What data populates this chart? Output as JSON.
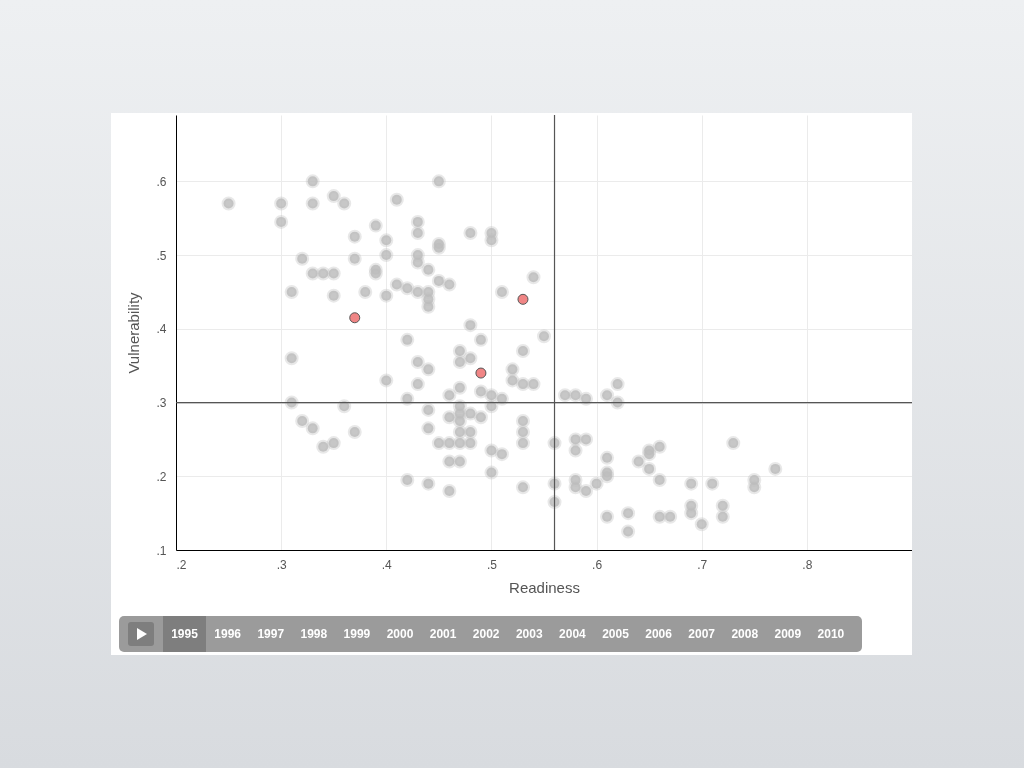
{
  "chart_data": {
    "type": "scatter",
    "xlabel": "Readiness",
    "ylabel": "Vulnerability",
    "xlim": [
      0.2,
      0.9
    ],
    "ylim": [
      0.1,
      0.69
    ],
    "xticks": [
      {
        "value": 0.2,
        "label": ".2"
      },
      {
        "value": 0.3,
        "label": ".3"
      },
      {
        "value": 0.4,
        "label": ".4"
      },
      {
        "value": 0.5,
        "label": ".5"
      },
      {
        "value": 0.6,
        "label": ".6"
      },
      {
        "value": 0.7,
        "label": ".7"
      },
      {
        "value": 0.8,
        "label": ".8"
      }
    ],
    "yticks": [
      {
        "value": 0.1,
        "label": ".1"
      },
      {
        "value": 0.2,
        "label": ".2"
      },
      {
        "value": 0.3,
        "label": ".3"
      },
      {
        "value": 0.4,
        "label": ".4"
      },
      {
        "value": 0.5,
        "label": ".5"
      },
      {
        "value": 0.6,
        "label": ".6"
      }
    ],
    "grid": true,
    "marker": "circle",
    "ref_lines": [
      {
        "axis": "x",
        "value": 0.56,
        "color": "#555555"
      },
      {
        "axis": "y",
        "value": 0.3,
        "color": "#555555"
      }
    ],
    "annotations": [
      "1995",
      "1996",
      "1997",
      "1998",
      "1999",
      "2000",
      "2001",
      "2002",
      "2003",
      "2004",
      "2005",
      "2006",
      "2007",
      "2008",
      "2009",
      "2010"
    ],
    "series": [
      {
        "color": "#bdbdbd",
        "x": [
          0.25,
          0.3,
          0.3,
          0.33,
          0.33,
          0.35,
          0.36,
          0.37,
          0.39,
          0.4,
          0.4,
          0.41,
          0.43,
          0.43,
          0.43,
          0.43,
          0.45,
          0.45,
          0.45,
          0.48,
          0.5,
          0.5,
          0.32,
          0.33,
          0.34,
          0.35,
          0.37,
          0.39,
          0.39,
          0.41,
          0.42,
          0.43,
          0.44,
          0.44,
          0.45,
          0.46,
          0.44,
          0.44,
          0.51,
          0.54,
          0.31,
          0.35,
          0.38,
          0.4,
          0.48,
          0.49,
          0.42,
          0.55,
          0.53,
          0.43,
          0.44,
          0.47,
          0.48,
          0.47,
          0.31,
          0.4,
          0.43,
          0.42,
          0.31,
          0.36,
          0.32,
          0.33,
          0.35,
          0.34,
          0.37,
          0.52,
          0.52,
          0.53,
          0.54,
          0.46,
          0.47,
          0.49,
          0.5,
          0.51,
          0.44,
          0.47,
          0.47,
          0.48,
          0.49,
          0.5,
          0.46,
          0.44,
          0.47,
          0.47,
          0.48,
          0.45,
          0.46,
          0.47,
          0.48,
          0.53,
          0.53,
          0.53,
          0.56,
          0.46,
          0.47,
          0.5,
          0.51,
          0.5,
          0.42,
          0.44,
          0.46,
          0.53,
          0.56,
          0.56,
          0.57,
          0.58,
          0.59,
          0.61,
          0.62,
          0.62,
          0.58,
          0.59,
          0.58,
          0.61,
          0.61,
          0.61,
          0.58,
          0.58,
          0.59,
          0.6,
          0.61,
          0.63,
          0.63,
          0.64,
          0.65,
          0.65,
          0.65,
          0.66,
          0.66,
          0.66,
          0.67,
          0.69,
          0.69,
          0.69,
          0.7,
          0.71,
          0.72,
          0.72,
          0.73,
          0.75,
          0.75,
          0.77
        ],
        "values": [
          0.57,
          0.57,
          0.545,
          0.6,
          0.57,
          0.58,
          0.57,
          0.525,
          0.54,
          0.52,
          0.5,
          0.575,
          0.545,
          0.53,
          0.5,
          0.49,
          0.6,
          0.515,
          0.51,
          0.53,
          0.53,
          0.52,
          0.495,
          0.475,
          0.475,
          0.475,
          0.495,
          0.48,
          0.475,
          0.46,
          0.455,
          0.45,
          0.45,
          0.48,
          0.465,
          0.46,
          0.44,
          0.43,
          0.45,
          0.47,
          0.45,
          0.445,
          0.45,
          0.445,
          0.405,
          0.385,
          0.385,
          0.39,
          0.37,
          0.355,
          0.345,
          0.37,
          0.36,
          0.355,
          0.36,
          0.33,
          0.325,
          0.305,
          0.3,
          0.295,
          0.275,
          0.265,
          0.245,
          0.24,
          0.26,
          0.345,
          0.33,
          0.325,
          0.325,
          0.31,
          0.32,
          0.315,
          0.31,
          0.305,
          0.29,
          0.295,
          0.285,
          0.285,
          0.28,
          0.295,
          0.28,
          0.265,
          0.275,
          0.26,
          0.26,
          0.245,
          0.245,
          0.245,
          0.245,
          0.275,
          0.26,
          0.245,
          0.245,
          0.22,
          0.22,
          0.235,
          0.23,
          0.205,
          0.195,
          0.19,
          0.18,
          0.185,
          0.19,
          0.165,
          0.31,
          0.31,
          0.305,
          0.31,
          0.325,
          0.3,
          0.25,
          0.25,
          0.235,
          0.225,
          0.205,
          0.2,
          0.195,
          0.185,
          0.18,
          0.19,
          0.145,
          0.15,
          0.125,
          0.22,
          0.21,
          0.235,
          0.23,
          0.24,
          0.195,
          0.145,
          0.145,
          0.19,
          0.16,
          0.15,
          0.135,
          0.19,
          0.16,
          0.145,
          0.245,
          0.195,
          0.185,
          0.21
        ]
      },
      {
        "color": "#f08585",
        "x": [
          0.37,
          0.53,
          0.49
        ],
        "values": [
          0.415,
          0.44,
          0.34
        ]
      }
    ]
  }
}
